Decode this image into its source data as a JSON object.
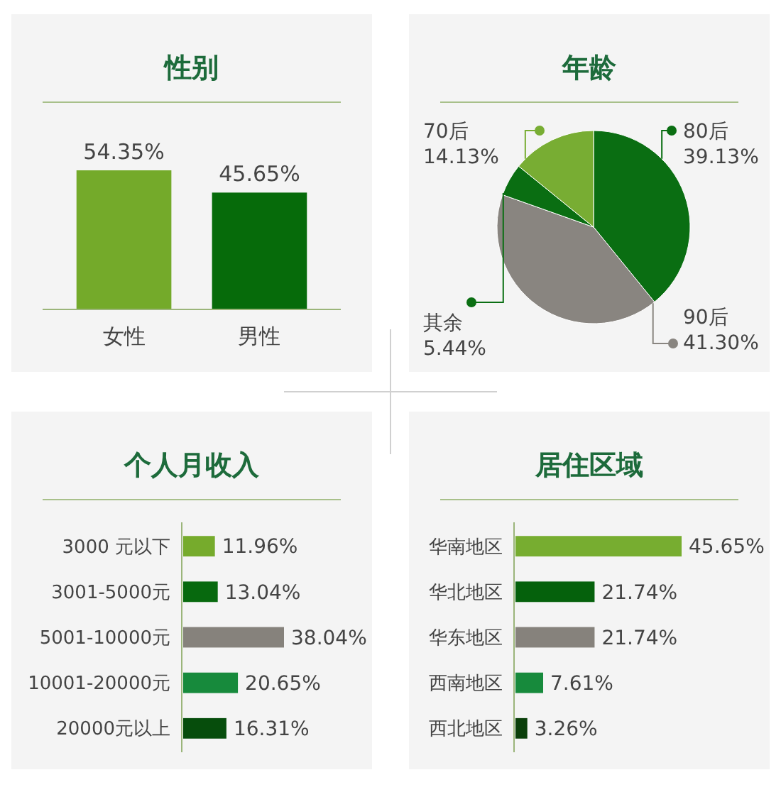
{
  "chart_data": [
    {
      "type": "bar",
      "title": "性别",
      "categories": [
        "女性",
        "男性"
      ],
      "values": [
        54.35,
        45.65
      ],
      "colors": [
        "#74aa2a",
        "#066b0a"
      ],
      "value_labels": [
        "54.35%",
        "45.65%"
      ]
    },
    {
      "type": "pie",
      "title": "年龄",
      "categories": [
        "80后",
        "90后",
        "其余",
        "70后"
      ],
      "values": [
        39.13,
        41.3,
        5.44,
        14.13
      ],
      "colors": [
        "#0a6e12",
        "#898580",
        "#0a6e12",
        "#78ad33"
      ],
      "value_labels": [
        "39.13%",
        "41.30%",
        "5.44%",
        "14.13%"
      ]
    },
    {
      "type": "bar",
      "orientation": "horizontal",
      "title": "个人月收入",
      "categories": [
        "3000 元以下",
        "3001-5000元",
        "5001-10000元",
        "10001-20000元",
        "20000元以上"
      ],
      "values": [
        11.96,
        13.04,
        38.04,
        20.65,
        16.31
      ],
      "colors": [
        "#76ab2c",
        "#07690e",
        "#86827c",
        "#178a3c",
        "#064d0c"
      ],
      "value_labels": [
        "11.96%",
        "13.04%",
        "38.04%",
        "20.65%",
        "16.31%"
      ]
    },
    {
      "type": "bar",
      "orientation": "horizontal",
      "title": "居住区域",
      "categories": [
        "华南地区",
        "华北地区",
        "华东地区",
        "西南地区",
        "西北地区"
      ],
      "values": [
        45.65,
        21.74,
        21.74,
        7.61,
        3.26
      ],
      "colors": [
        "#77ad30",
        "#05610c",
        "#86827c",
        "#178a3c",
        "#0a3f0a"
      ],
      "value_labels": [
        "45.65%",
        "21.74%",
        "21.74%",
        "7.61%",
        "3.26%"
      ]
    }
  ]
}
